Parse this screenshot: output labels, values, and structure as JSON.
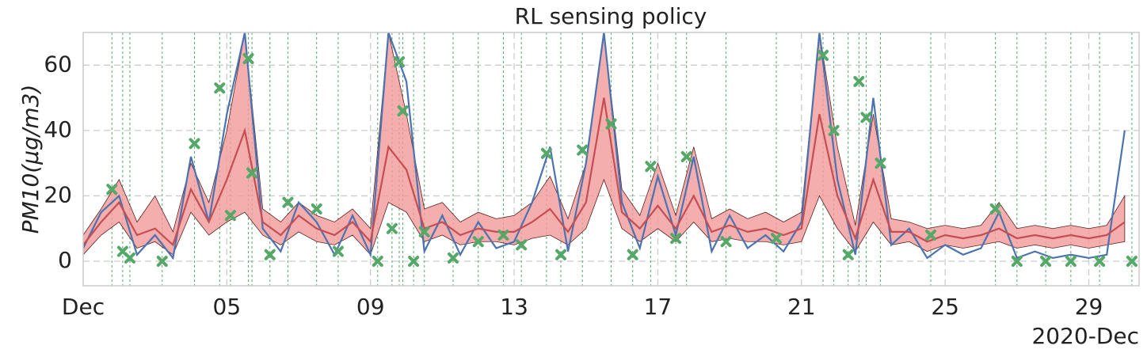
{
  "chart_data": {
    "type": "line",
    "title": "RL sensing policy",
    "ylabel": "PM10(μg/m3)",
    "x_offset_label": "2020-Dec",
    "x": [
      1,
      1.5,
      2,
      2.5,
      3,
      3.5,
      4,
      4.5,
      5,
      5.5,
      6,
      6.5,
      7,
      7.5,
      8,
      8.5,
      9,
      9.5,
      10,
      10.5,
      11,
      11.5,
      12,
      12.5,
      13,
      13.5,
      14,
      14.5,
      15,
      15.5,
      16,
      16.5,
      17,
      17.5,
      18,
      18.5,
      19,
      19.5,
      20,
      20.5,
      21,
      21.5,
      22,
      22.5,
      23,
      23.5,
      24,
      24.5,
      25,
      25.5,
      26,
      26.5,
      27,
      27.5,
      28,
      28.5,
      29,
      29.5,
      30
    ],
    "series": [
      {
        "color": "#4c72b0",
        "values": [
          4,
          15,
          20,
          2,
          8,
          1,
          32,
          12,
          45,
          70,
          10,
          3,
          18,
          12,
          2,
          14,
          2,
          70,
          55,
          3,
          14,
          2,
          12,
          4,
          6,
          18,
          35,
          3,
          30,
          70,
          18,
          4,
          26,
          8,
          32,
          3,
          14,
          4,
          8,
          3,
          12,
          70,
          25,
          2,
          50,
          5,
          10,
          1,
          5,
          2,
          4,
          15,
          1,
          3,
          1,
          2,
          1,
          2,
          40
        ]
      },
      {
        "color": "#c44e52",
        "values": [
          5,
          12,
          18,
          8,
          10,
          5,
          22,
          12,
          25,
          40,
          12,
          8,
          14,
          10,
          8,
          12,
          6,
          35,
          28,
          10,
          12,
          8,
          10,
          9,
          9,
          12,
          16,
          9,
          18,
          50,
          15,
          10,
          17,
          10,
          20,
          9,
          11,
          9,
          10,
          8,
          10,
          45,
          20,
          7,
          25,
          9,
          9,
          6,
          8,
          7,
          8,
          10,
          7,
          8,
          7,
          8,
          7,
          8,
          12
        ]
      }
    ],
    "band": {
      "color": "#f29a9a",
      "lower": [
        2,
        8,
        12,
        4,
        6,
        2,
        15,
        8,
        12,
        15,
        8,
        5,
        9,
        6,
        5,
        8,
        2,
        18,
        15,
        6,
        8,
        5,
        6,
        6,
        5,
        7,
        8,
        5,
        10,
        25,
        10,
        6,
        10,
        6,
        12,
        6,
        7,
        6,
        6,
        5,
        6,
        20,
        10,
        3,
        12,
        5,
        6,
        3,
        5,
        4,
        5,
        6,
        4,
        5,
        4,
        5,
        4,
        5,
        6
      ],
      "upper": [
        8,
        16,
        25,
        12,
        20,
        9,
        30,
        18,
        40,
        70,
        16,
        12,
        18,
        14,
        12,
        16,
        10,
        70,
        45,
        16,
        18,
        12,
        15,
        13,
        14,
        18,
        26,
        13,
        30,
        70,
        22,
        14,
        30,
        14,
        35,
        13,
        16,
        13,
        15,
        12,
        15,
        70,
        35,
        11,
        45,
        13,
        12,
        10,
        11,
        10,
        11,
        18,
        10,
        11,
        10,
        11,
        10,
        11,
        20
      ]
    },
    "samples": {
      "color": "#55a868",
      "x": [
        1.8,
        2.1,
        2.3,
        3.2,
        4.1,
        4.8,
        5.1,
        5.6,
        5.7,
        6.2,
        6.7,
        7.5,
        8.1,
        9.2,
        9.6,
        9.8,
        9.9,
        10.2,
        10.5,
        11.3,
        12,
        12.7,
        13.2,
        13.9,
        14.3,
        14.9,
        15.7,
        16.3,
        16.8,
        17.5,
        17.8,
        18.9,
        20.3,
        21.6,
        21.9,
        22.3,
        22.6,
        22.8,
        23.2,
        24.6,
        26.4,
        27,
        27.8,
        28.5,
        29.3,
        30.2
      ],
      "y": [
        22,
        3,
        1,
        0,
        36,
        53,
        14,
        62,
        27,
        2,
        18,
        16,
        3,
        0,
        10,
        61,
        46,
        0,
        9,
        1,
        6,
        8,
        5,
        33,
        2,
        34,
        42,
        2,
        29,
        7,
        32,
        6,
        7,
        63,
        40,
        2,
        55,
        44,
        30,
        8,
        16,
        0,
        0,
        0,
        0,
        0
      ]
    },
    "xlim": [
      1,
      30.4
    ],
    "ylim": [
      -7.5,
      70
    ],
    "xticks": [
      {
        "value": 1,
        "label": "Dec"
      },
      {
        "value": 5,
        "label": "05"
      },
      {
        "value": 9,
        "label": "09"
      },
      {
        "value": 13,
        "label": "13"
      },
      {
        "value": 17,
        "label": "17"
      },
      {
        "value": 21,
        "label": "21"
      },
      {
        "value": 25,
        "label": "25"
      },
      {
        "value": 29,
        "label": "29"
      }
    ],
    "yticks": [
      0,
      20,
      40,
      60
    ],
    "grid": true
  }
}
